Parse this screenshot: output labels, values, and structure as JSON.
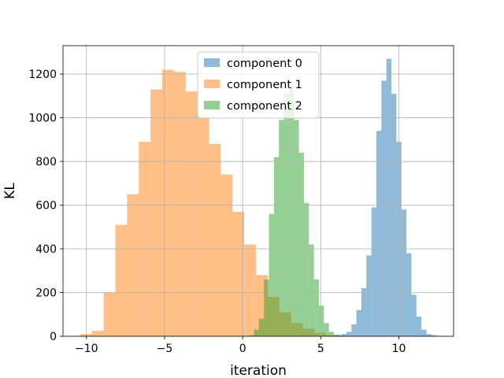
{
  "chart_data": {
    "type": "bar",
    "subtype": "overlapping-histogram",
    "title": "",
    "xlabel": "iteration",
    "ylabel": "KL",
    "xlim": [
      -11.5,
      13.5
    ],
    "ylim": [
      0,
      1330
    ],
    "xticks": [
      -10,
      -5,
      0,
      5,
      10
    ],
    "xtick_labels": [
      "−10",
      "−5",
      "0",
      "5",
      "10"
    ],
    "yticks": [
      0,
      200,
      400,
      600,
      800,
      1000,
      1200
    ],
    "ytick_labels": [
      "0",
      "200",
      "400",
      "600",
      "800",
      "1000",
      "1200"
    ],
    "grid": true,
    "legend_position": "top-center",
    "bar_opacity": 0.5,
    "series": [
      {
        "name": "component 0",
        "color": "#1f77b4",
        "bin_edges": [
          6.0,
          6.32,
          6.64,
          6.96,
          7.28,
          7.6,
          7.92,
          8.24,
          8.56,
          8.88,
          9.2,
          9.52,
          9.84,
          10.16,
          10.48,
          10.8,
          11.12,
          11.44,
          11.76,
          12.08,
          12.4
        ],
        "counts": [
          5,
          10,
          20,
          55,
          120,
          220,
          370,
          590,
          940,
          1170,
          1270,
          1110,
          890,
          580,
          380,
          190,
          90,
          30,
          10,
          5
        ]
      },
      {
        "name": "component 1",
        "color": "#ff7f0e",
        "bin_edges": [
          -10.4,
          -9.65,
          -8.9,
          -8.15,
          -7.4,
          -6.65,
          -5.9,
          -5.15,
          -4.4,
          -3.65,
          -2.9,
          -2.15,
          -1.4,
          -0.65,
          0.1,
          0.85,
          1.6,
          2.35,
          3.1,
          3.85,
          4.6,
          5.35,
          6.1
        ],
        "counts": [
          10,
          25,
          200,
          510,
          650,
          890,
          1130,
          1220,
          1210,
          1120,
          1010,
          880,
          740,
          570,
          420,
          280,
          180,
          110,
          60,
          35,
          15,
          5
        ]
      },
      {
        "name": "component 2",
        "color": "#2ca02c",
        "bin_edges": [
          0.4,
          0.72,
          1.04,
          1.36,
          1.68,
          2.0,
          2.32,
          2.64,
          2.96,
          3.28,
          3.6,
          3.92,
          4.24,
          4.56,
          4.88,
          5.2,
          5.52,
          5.84,
          6.16,
          6.48
        ],
        "counts": [
          5,
          30,
          80,
          260,
          560,
          820,
          990,
          1110,
          1140,
          990,
          840,
          610,
          420,
          260,
          140,
          60,
          20,
          8,
          3
        ]
      }
    ]
  }
}
